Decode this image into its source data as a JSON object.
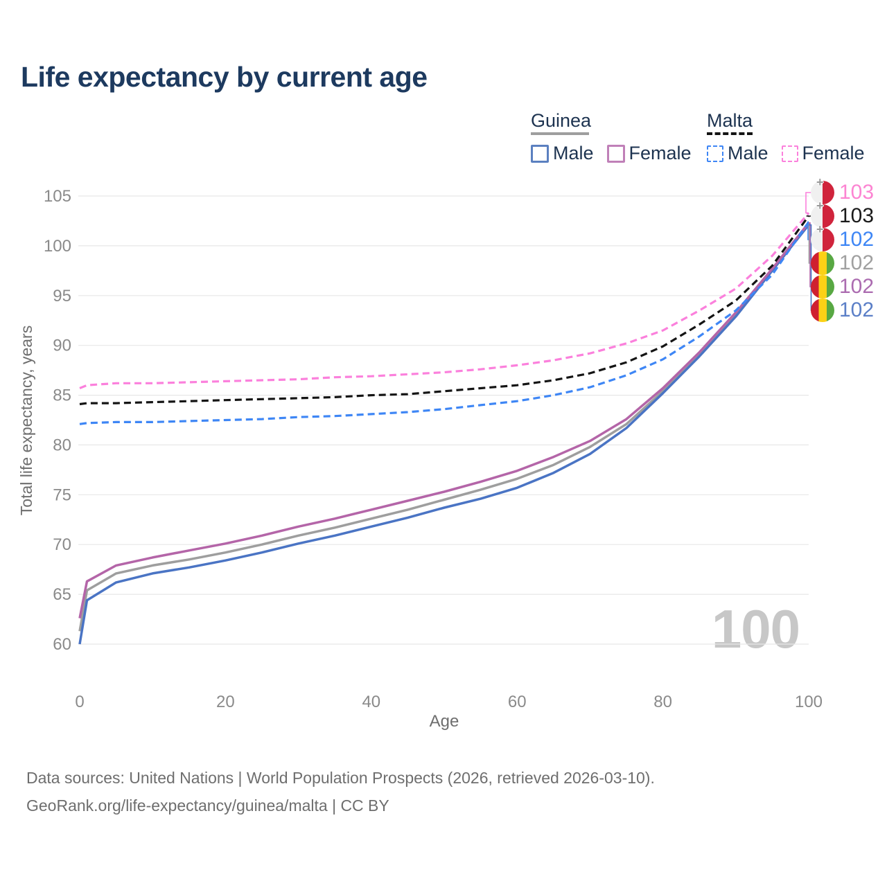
{
  "title": "Life expectancy by current age",
  "legend": {
    "guinea": {
      "label": "Guinea",
      "underline_color": "#9e9e9e",
      "male": {
        "label": "Male",
        "color": "#5b80c0"
      },
      "female": {
        "label": "Female",
        "color": "#c080b8"
      }
    },
    "malta": {
      "label": "Malta",
      "underline_color": "#141414",
      "male": {
        "label": "Male",
        "color": "#3e86f5"
      },
      "female": {
        "label": "Female",
        "color": "#fb80dc"
      }
    }
  },
  "chart_data": {
    "type": "line",
    "title": "Life expectancy by current age",
    "xlabel": "Age",
    "ylabel": "Total life expectancy, years",
    "xlim": [
      0,
      100
    ],
    "ylim": [
      60,
      105
    ],
    "x_ticks": [
      0,
      20,
      40,
      60,
      80,
      100
    ],
    "y_ticks": [
      60,
      65,
      70,
      75,
      80,
      85,
      90,
      95,
      100,
      105
    ],
    "grid": "horizontal",
    "legend_position": "top-right",
    "x": [
      0,
      1,
      5,
      10,
      15,
      20,
      25,
      30,
      35,
      40,
      45,
      50,
      55,
      60,
      65,
      70,
      75,
      80,
      85,
      90,
      95,
      100
    ],
    "series": [
      {
        "key": "guinea_all",
        "name": "Guinea — Both sexes",
        "color": "#9e9e9e",
        "dash": false,
        "values": [
          61.3,
          65.4,
          67.1,
          67.9,
          68.5,
          69.2,
          70.0,
          70.9,
          71.7,
          72.6,
          73.5,
          74.5,
          75.5,
          76.6,
          78.0,
          79.8,
          82.1,
          85.4,
          89.1,
          93.1,
          97.6,
          102.2
        ]
      },
      {
        "key": "guinea_male",
        "name": "Guinea — Male",
        "color": "#4a74c4",
        "dash": false,
        "values": [
          60.0,
          64.4,
          66.2,
          67.1,
          67.7,
          68.4,
          69.2,
          70.1,
          70.9,
          71.8,
          72.7,
          73.7,
          74.6,
          75.7,
          77.2,
          79.1,
          81.7,
          85.2,
          88.9,
          92.9,
          97.5,
          102.1
        ]
      },
      {
        "key": "guinea_female",
        "name": "Guinea — Female",
        "color": "#b465a8",
        "dash": false,
        "values": [
          62.6,
          66.3,
          67.9,
          68.7,
          69.4,
          70.1,
          70.9,
          71.8,
          72.6,
          73.5,
          74.4,
          75.3,
          76.3,
          77.4,
          78.8,
          80.4,
          82.6,
          85.7,
          89.3,
          93.3,
          97.7,
          102.3
        ]
      },
      {
        "key": "malta_all",
        "name": "Malta — Both sexes",
        "color": "#141414",
        "dash": true,
        "values": [
          84.1,
          84.2,
          84.2,
          84.3,
          84.4,
          84.5,
          84.6,
          84.7,
          84.8,
          85.0,
          85.1,
          85.4,
          85.7,
          86.0,
          86.5,
          87.2,
          88.3,
          89.9,
          92.1,
          94.5,
          98.0,
          103.0
        ]
      },
      {
        "key": "malta_male",
        "name": "Malta — Male",
        "color": "#3e86f5",
        "dash": true,
        "values": [
          82.1,
          82.2,
          82.3,
          82.3,
          82.4,
          82.5,
          82.6,
          82.8,
          82.9,
          83.1,
          83.3,
          83.6,
          84.0,
          84.4,
          85.0,
          85.8,
          87.0,
          88.6,
          90.9,
          93.5,
          97.1,
          102.4
        ]
      },
      {
        "key": "malta_female",
        "name": "Malta — Female",
        "color": "#fb80dc",
        "dash": true,
        "values": [
          85.7,
          86.0,
          86.2,
          86.2,
          86.3,
          86.4,
          86.5,
          86.6,
          86.8,
          86.9,
          87.1,
          87.3,
          87.6,
          88.0,
          88.5,
          89.2,
          90.2,
          91.5,
          93.5,
          95.7,
          99.0,
          103.3
        ]
      }
    ]
  },
  "end_labels": [
    {
      "series": "malta_female",
      "value": "103",
      "flag": "malta",
      "text_color": "#fc84d2"
    },
    {
      "series": "malta_all",
      "value": "103",
      "flag": "malta",
      "text_color": "#1a1a1a"
    },
    {
      "series": "malta_male",
      "value": "102",
      "flag": "malta",
      "text_color": "#3e86f5"
    },
    {
      "series": "guinea_all",
      "value": "102",
      "flag": "guinea",
      "text_color": "#a0a0a0"
    },
    {
      "series": "guinea_female",
      "value": "102",
      "flag": "guinea",
      "text_color": "#ab6bb0"
    },
    {
      "series": "guinea_male",
      "value": "102",
      "flag": "guinea",
      "text_color": "#5b7fc7"
    }
  ],
  "watermark": {
    "value": "100"
  },
  "footer": {
    "line1": "Data sources: United Nations | World Population Prospects (2026, retrieved 2026-03-10).",
    "line2": "GeoRank.org/life-expectancy/guinea/malta | CC BY"
  }
}
